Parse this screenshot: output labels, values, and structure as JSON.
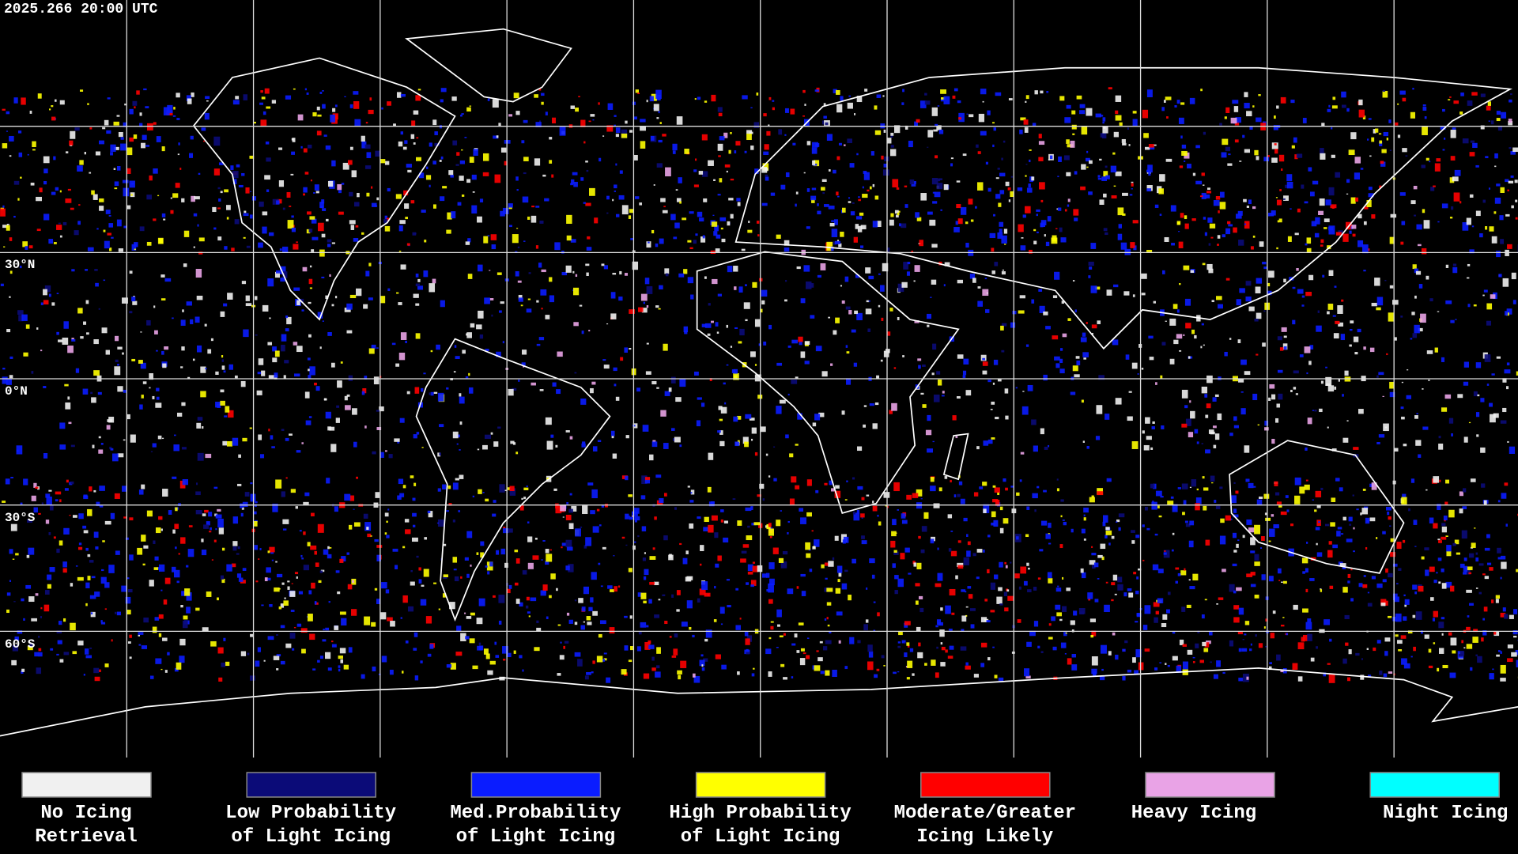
{
  "header": {
    "timestamp": "2025.266 20:00 UTC"
  },
  "map": {
    "latitude_labels": [
      "30°N",
      "0°N",
      "30°S",
      "60°S"
    ]
  },
  "legend": {
    "items": [
      {
        "label": [
          "No Icing",
          "Retrieval"
        ],
        "color": "#f0f0f0"
      },
      {
        "label": [
          "Low Probability",
          "of Light Icing"
        ],
        "color": "#0b0b78"
      },
      {
        "label": [
          "Med.Probability",
          "of Light Icing"
        ],
        "color": "#0a1cff"
      },
      {
        "label": [
          "High Probability",
          "of Light Icing"
        ],
        "color": "#ffff00"
      },
      {
        "label": [
          "Moderate/Greater",
          "Icing Likely"
        ],
        "color": "#ff0000"
      },
      {
        "label": [
          "Heavy Icing"
        ],
        "color": "#e9a3e6"
      },
      {
        "label": [
          "Night Icing"
        ],
        "color": "#00ffff"
      }
    ]
  }
}
